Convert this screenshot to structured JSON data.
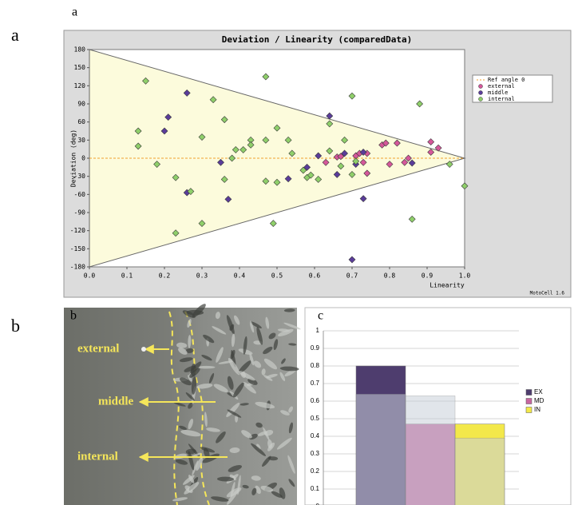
{
  "panel_labels": [
    "a",
    "a",
    "b",
    "b",
    "c"
  ],
  "image_labels": [
    "external",
    "middle",
    "internal"
  ],
  "chart_data": [
    {
      "type": "scatter",
      "title": "Deviation / Linearity (comparedData)",
      "x_label": "Linearity",
      "y_label": "Deviation (deg)",
      "footer": "MotoCell 1.6",
      "reference_line": {
        "name": "Ref angle 0",
        "value": 0,
        "color": "#f0a030"
      },
      "series": [
        {
          "name": "external",
          "color": "#d5579a",
          "x": [
            0.63,
            0.66,
            0.67,
            0.71,
            0.72,
            0.73,
            0.74,
            0.78,
            0.79,
            0.8,
            0.82,
            0.84,
            0.85,
            0.91,
            0.93,
            0.91,
            0.74
          ],
          "values": [
            -7,
            2,
            3,
            4,
            8,
            -7,
            8,
            22,
            25,
            -10,
            25,
            -7,
            0,
            27,
            17,
            10,
            -25
          ]
        },
        {
          "name": "middle",
          "color": "#5a3c9a",
          "x": [
            0.2,
            0.21,
            0.26,
            0.26,
            0.35,
            0.37,
            0.53,
            0.58,
            0.61,
            0.64,
            0.66,
            0.68,
            0.71,
            0.73,
            0.73,
            0.7,
            0.86
          ],
          "values": [
            45,
            68,
            108,
            -57,
            -7,
            -68,
            -34,
            -15,
            4,
            70,
            -27,
            8,
            -10,
            10,
            -67,
            -168,
            -8
          ]
        },
        {
          "name": "internal",
          "color": "#8fcf6a",
          "x": [
            0.15,
            0.13,
            0.13,
            0.18,
            0.23,
            0.23,
            0.27,
            0.33,
            0.3,
            0.3,
            0.36,
            0.36,
            0.38,
            0.39,
            0.41,
            0.43,
            0.43,
            0.47,
            0.47,
            0.47,
            0.5,
            0.5,
            0.49,
            0.53,
            0.54,
            0.57,
            0.58,
            0.59,
            0.61,
            0.64,
            0.64,
            0.67,
            0.68,
            0.7,
            0.7,
            0.71,
            0.88,
            0.86,
            0.96,
            1.0
          ],
          "values": [
            128,
            45,
            20,
            -10,
            -124,
            -32,
            -55,
            97,
            35,
            -108,
            64,
            -35,
            0,
            14,
            14,
            30,
            22,
            135,
            30,
            -38,
            50,
            -40,
            -108,
            30,
            8,
            -20,
            -32,
            -28,
            -35,
            57,
            12,
            -13,
            30,
            103,
            -27,
            -5,
            90,
            -101,
            -10,
            -46
          ]
        }
      ],
      "xlim": [
        0,
        1
      ],
      "ylim": [
        -180,
        180
      ],
      "xticks": [
        {
          "value": 0,
          "label": "0.0"
        },
        0.1,
        0.2,
        0.3,
        0.4,
        0.5,
        0.6,
        0.7,
        0.8,
        0.9,
        {
          "value": 1,
          "label": "1.0"
        }
      ],
      "yticks": [
        -180,
        -150,
        -120,
        -90,
        -60,
        -30,
        0,
        30,
        60,
        90,
        120,
        150,
        180
      ]
    },
    {
      "type": "bar",
      "categories": [
        null,
        null,
        null
      ],
      "series": [
        {
          "name": "EX",
          "color": "#4e3d6e",
          "values": [
            0.8,
            null,
            null
          ]
        },
        {
          "name": "MD",
          "color": "#c766a0",
          "values": [
            null,
            0.47,
            null
          ]
        },
        {
          "name": "IN",
          "color": "#f3e84a",
          "values": [
            null,
            null,
            0.47
          ]
        },
        {
          "color": "#c9d0da",
          "values": [
            0.64,
            0.63,
            0.39
          ]
        }
      ],
      "ylim": [
        0,
        1
      ],
      "yticks": [
        0,
        0.1,
        0.2,
        0.3,
        0.4,
        0.5,
        0.6,
        0.7,
        0.8,
        0.9,
        1
      ],
      "grid": true
    }
  ]
}
